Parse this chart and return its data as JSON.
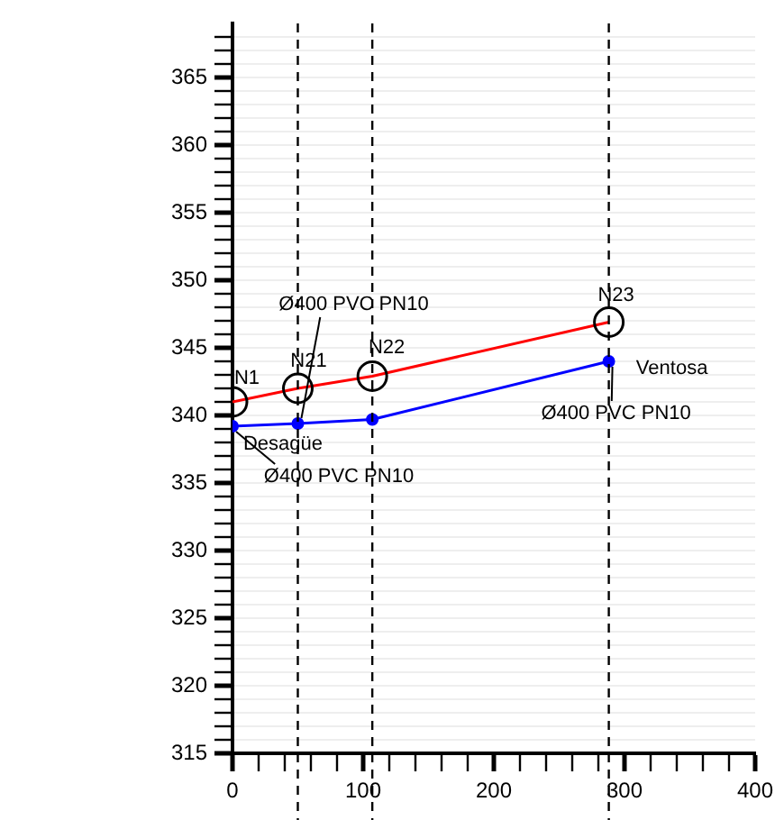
{
  "chart_data": {
    "type": "line",
    "x": [
      0,
      50,
      107,
      288
    ],
    "series": [
      {
        "color": "#ff0000",
        "values": [
          341.0,
          342.0,
          342.9,
          346.9
        ],
        "marker": "circle"
      },
      {
        "color": "#0000ff",
        "values": [
          339.2,
          339.4,
          339.7,
          344.0
        ],
        "marker": "circle"
      }
    ],
    "xlim": [
      0,
      400
    ],
    "ylim": [
      315,
      369
    ],
    "xticks": [
      0,
      {
        "value": 20,
        "label": null
      },
      {
        "value": 40,
        "label": null
      },
      {
        "value": 60,
        "label": null
      },
      {
        "value": 80,
        "label": null
      },
      100,
      {
        "value": 120,
        "label": null
      },
      {
        "value": 140,
        "label": null
      },
      {
        "value": 160,
        "label": null
      },
      {
        "value": 180,
        "label": null
      },
      200,
      {
        "value": 220,
        "label": null
      },
      {
        "value": 240,
        "label": null
      },
      {
        "value": 260,
        "label": null
      },
      {
        "value": 280,
        "label": null
      },
      300,
      {
        "value": 320,
        "label": null
      },
      {
        "value": 340,
        "label": null
      },
      {
        "value": 360,
        "label": null
      },
      {
        "value": 380,
        "label": null
      },
      400
    ],
    "yticks": [
      315,
      {
        "value": 316,
        "label": null
      },
      {
        "value": 317,
        "label": null
      },
      {
        "value": 318,
        "label": null
      },
      {
        "value": 319,
        "label": null
      },
      320,
      {
        "value": 321,
        "label": null
      },
      {
        "value": 322,
        "label": null
      },
      {
        "value": 323,
        "label": null
      },
      {
        "value": 324,
        "label": null
      },
      325,
      {
        "value": 326,
        "label": null
      },
      {
        "value": 327,
        "label": null
      },
      {
        "value": 328,
        "label": null
      },
      {
        "value": 329,
        "label": null
      },
      330,
      {
        "value": 331,
        "label": null
      },
      {
        "value": 332,
        "label": null
      },
      {
        "value": 333,
        "label": null
      },
      {
        "value": 334,
        "label": null
      },
      335,
      {
        "value": 336,
        "label": null
      },
      {
        "value": 337,
        "label": null
      },
      {
        "value": 338,
        "label": null
      },
      {
        "value": 339,
        "label": null
      },
      340,
      {
        "value": 341,
        "label": null
      },
      {
        "value": 342,
        "label": null
      },
      {
        "value": 343,
        "label": null
      },
      {
        "value": 344,
        "label": null
      },
      345,
      {
        "value": 346,
        "label": null
      },
      {
        "value": 347,
        "label": null
      },
      {
        "value": 348,
        "label": null
      },
      {
        "value": 349,
        "label": null
      },
      350,
      {
        "value": 351,
        "label": null
      },
      {
        "value": 352,
        "label": null
      },
      {
        "value": 353,
        "label": null
      },
      {
        "value": 354,
        "label": null
      },
      355,
      {
        "value": 356,
        "label": null
      },
      {
        "value": 357,
        "label": null
      },
      {
        "value": 358,
        "label": null
      },
      {
        "value": 359,
        "label": null
      },
      360,
      {
        "value": 361,
        "label": null
      },
      {
        "value": 362,
        "label": null
      },
      {
        "value": 363,
        "label": null
      },
      {
        "value": 364,
        "label": null
      },
      365,
      {
        "value": 366,
        "label": null
      },
      {
        "value": 367,
        "label": null
      },
      {
        "value": 368,
        "label": null
      }
    ],
    "grid": "y",
    "legend": false,
    "line_style": "solid",
    "ref_lines": [
      {
        "axis": "x",
        "value": 50,
        "line_style": "dashed",
        "color": "#000000"
      },
      {
        "axis": "x",
        "value": 107,
        "line_style": "dashed",
        "color": "#000000"
      },
      {
        "axis": "x",
        "value": 288,
        "line_style": "dashed",
        "color": "#000000"
      }
    ],
    "annotations": [
      {
        "text": "N1",
        "x": 0,
        "y": 341.0
      },
      {
        "text": "N21",
        "x": 50,
        "y": 342.0
      },
      {
        "text": "N22",
        "x": 107,
        "y": 342.9
      },
      {
        "text": "N23",
        "x": 288,
        "y": 346.9
      },
      {
        "text": "Ø400 PVC PN10",
        "x": 50,
        "y": 339.4
      },
      {
        "text": "Ø400 PVC PN10",
        "x": 288,
        "y": 344.0
      },
      {
        "text": "Ø400 PVC PN10",
        "x": 0,
        "y": 339.2
      },
      {
        "text": "Desagüe",
        "x": 0,
        "y": 339.2
      },
      {
        "text": "Ventosa",
        "x": 288,
        "y": 344.0
      }
    ]
  }
}
